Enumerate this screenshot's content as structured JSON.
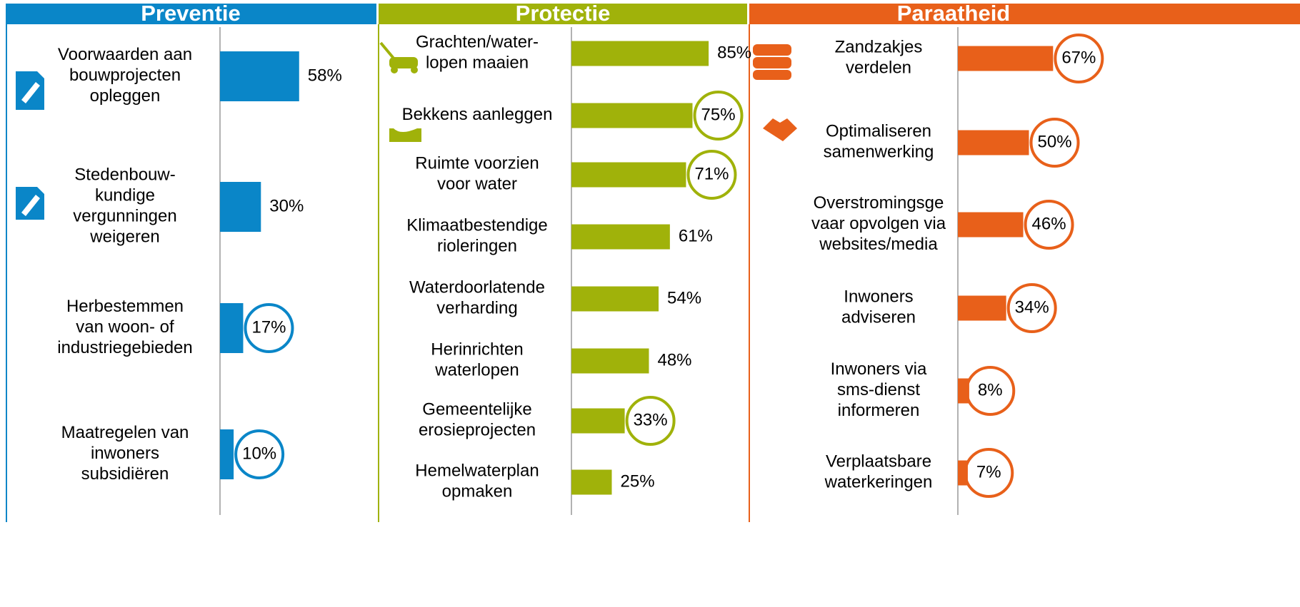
{
  "chart_data": [
    {
      "type": "bar",
      "orientation": "horizontal",
      "title": "Preventie",
      "color": "#0a86c8",
      "categories": [
        "Voorwaarden aan\nbouwprojecten\nopleggen",
        "Stedenbouw-\nkundige\nvergunningen\nweigeren",
        "Herbestemmen\nvan woon- of\nindustriegebieden",
        "Maatregelen van\ninwoners\nsubsidiëren"
      ],
      "values": [
        58,
        30,
        17,
        10
      ],
      "value_labels": [
        "58%",
        "30%",
        "17%",
        "10%"
      ],
      "circled": [
        false,
        false,
        true,
        true
      ],
      "xlim": [
        0,
        100
      ]
    },
    {
      "type": "bar",
      "orientation": "horizontal",
      "title": "Protectie",
      "color": "#a0b20a",
      "categories": [
        "Grachten/water-\nlopen maaien",
        "Bekkens aanleggen",
        "Ruimte voorzien\nvoor water",
        "Klimaatbestendige\nrioleringen",
        "Waterdoorlatende\nverharding",
        "Herinrichten\nwaterlopen",
        "Gemeentelijke\nerosieprojecten",
        "Hemelwaterplan\nopmaken"
      ],
      "values": [
        85,
        75,
        71,
        61,
        54,
        48,
        33,
        25
      ],
      "value_labels": [
        "85%",
        "75%",
        "71%",
        "61%",
        "54%",
        "48%",
        "33%",
        "25%"
      ],
      "circled": [
        false,
        true,
        true,
        false,
        false,
        false,
        true,
        false
      ],
      "xlim": [
        0,
        100
      ]
    },
    {
      "type": "bar",
      "orientation": "horizontal",
      "title": "Paraatheid",
      "color": "#e8601a",
      "categories": [
        "Zandzakjes\nverdelen",
        "Optimaliseren\nsamenwerking",
        "Overstromingsge\nvaar opvolgen via\nwebsites/media",
        "Inwoners\nadviseren",
        "Inwoners via\nsms-dienst\ninformeren",
        "Verplaatsbare\nwaterkeringen"
      ],
      "values": [
        67,
        50,
        46,
        34,
        8,
        7
      ],
      "value_labels": [
        "67%",
        "50%",
        "46%",
        "34%",
        "8%",
        "7%"
      ],
      "circled": [
        true,
        true,
        true,
        true,
        true,
        true
      ],
      "xlim": [
        0,
        100
      ]
    }
  ]
}
